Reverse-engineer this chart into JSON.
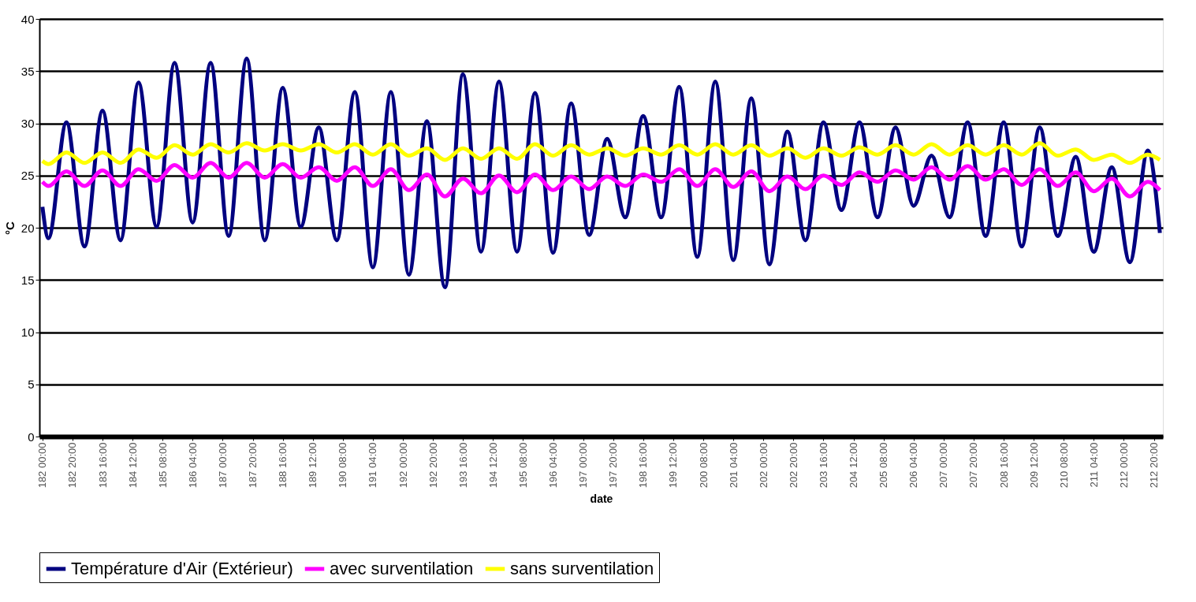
{
  "chart_data": {
    "type": "line",
    "xlabel": "date",
    "ylabel": "°C",
    "categories": [
      "182 00:00",
      null,
      null,
      null,
      null,
      "182 20:00",
      null,
      null,
      null,
      null,
      "183 16:00",
      null,
      null,
      null,
      null,
      "184 12:00",
      null,
      null,
      null,
      null,
      "185 08:00",
      null,
      null,
      null,
      null,
      "186 04:00",
      null,
      null,
      null,
      null,
      "187 00:00",
      null,
      null,
      null,
      null,
      "187 20:00",
      null,
      null,
      null,
      null,
      "188 16:00",
      null,
      null,
      null,
      null,
      "189 12:00",
      null,
      null,
      null,
      null,
      "190 08:00",
      null,
      null,
      null,
      null,
      "191 04:00",
      null,
      null,
      null,
      null,
      "192 00:00",
      null,
      null,
      null,
      null,
      "192 20:00",
      null,
      null,
      null,
      null,
      "193 16:00",
      null,
      null,
      null,
      null,
      "194 12:00",
      null,
      null,
      null,
      null,
      "195 08:00",
      null,
      null,
      null,
      null,
      "196 04:00",
      null,
      null,
      null,
      null,
      "197 00:00",
      null,
      null,
      null,
      null,
      "197 20:00",
      null,
      null,
      null,
      null,
      "198 16:00",
      null,
      null,
      null,
      null,
      "199 12:00",
      null,
      null,
      null,
      null,
      "200 08:00",
      null,
      null,
      null,
      null,
      "201 04:00",
      null,
      null,
      null,
      null,
      "202 00:00",
      null,
      null,
      null,
      null,
      "202 20:00",
      null,
      null,
      null,
      null,
      "203 16:00",
      null,
      null,
      null,
      null,
      "204 12:00",
      null,
      null,
      null,
      null,
      "205 08:00",
      null,
      null,
      null,
      null,
      "206 04:00",
      null,
      null,
      null,
      null,
      "207 00:00",
      null,
      null,
      null,
      null,
      "207 20:00",
      null,
      null,
      null,
      null,
      "208 16:00",
      null,
      null,
      null,
      null,
      "209 12:00",
      null,
      null,
      null,
      null,
      "210 08:00",
      null,
      null,
      null,
      null,
      "211 04:00",
      null,
      null,
      null,
      null,
      "212 00:00",
      null,
      null,
      null,
      null,
      "212 20:00",
      null
    ],
    "series": [
      {
        "name": "Température d'Air (Extérieur)",
        "color": "#000080",
        "values": [
          22.0,
          19.0,
          null,
          null,
          30.1,
          null,
          null,
          18.2,
          null,
          null,
          31.2,
          null,
          null,
          18.8,
          null,
          null,
          33.9,
          null,
          null,
          20.1,
          null,
          null,
          35.8,
          null,
          null,
          20.5,
          null,
          null,
          35.8,
          null,
          null,
          19.2,
          null,
          null,
          36.2,
          null,
          null,
          18.8,
          null,
          null,
          33.4,
          null,
          null,
          20.1,
          null,
          null,
          29.6,
          null,
          null,
          18.8,
          null,
          null,
          33.0,
          null,
          null,
          16.2,
          null,
          null,
          33.0,
          null,
          null,
          15.5,
          null,
          null,
          30.2,
          null,
          null,
          14.3,
          null,
          null,
          34.7,
          null,
          null,
          17.7,
          null,
          null,
          34.0,
          null,
          null,
          17.7,
          null,
          null,
          32.9,
          null,
          null,
          17.6,
          null,
          null,
          31.9,
          null,
          null,
          19.3,
          null,
          null,
          28.5,
          null,
          null,
          21.0,
          null,
          null,
          30.7,
          null,
          null,
          21.0,
          null,
          null,
          33.5,
          null,
          null,
          17.2,
          null,
          null,
          34.0,
          null,
          null,
          16.9,
          null,
          null,
          32.4,
          null,
          null,
          16.5,
          null,
          null,
          29.2,
          null,
          null,
          18.8,
          null,
          null,
          30.1,
          null,
          null,
          21.7,
          null,
          null,
          30.1,
          null,
          null,
          21.0,
          null,
          null,
          29.6,
          null,
          null,
          22.1,
          null,
          null,
          26.9,
          null,
          null,
          21.0,
          null,
          null,
          30.1,
          null,
          null,
          19.2,
          null,
          null,
          30.1,
          null,
          null,
          18.2,
          null,
          null,
          29.6,
          null,
          null,
          19.2,
          null,
          null,
          26.8,
          null,
          null,
          17.7,
          null,
          null,
          25.8,
          null,
          null,
          16.7,
          null,
          null,
          27.4,
          null,
          19.5
        ]
      },
      {
        "name": "avec surventilation",
        "color": "#ff00ff",
        "values": [
          24.4,
          24.0,
          null,
          null,
          25.4,
          null,
          null,
          24.0,
          null,
          null,
          25.5,
          null,
          null,
          24.0,
          null,
          null,
          25.6,
          null,
          null,
          24.5,
          null,
          null,
          26.0,
          null,
          null,
          24.8,
          null,
          null,
          26.2,
          null,
          null,
          24.8,
          null,
          null,
          26.2,
          null,
          null,
          24.8,
          null,
          null,
          26.1,
          null,
          null,
          24.8,
          null,
          null,
          25.8,
          null,
          null,
          24.5,
          null,
          null,
          25.8,
          null,
          null,
          24.0,
          null,
          null,
          25.6,
          null,
          null,
          23.6,
          null,
          null,
          25.1,
          null,
          null,
          23.0,
          null,
          null,
          24.7,
          null,
          null,
          23.3,
          null,
          null,
          25.0,
          null,
          null,
          23.4,
          null,
          null,
          25.1,
          null,
          null,
          23.6,
          null,
          null,
          24.9,
          null,
          null,
          23.7,
          null,
          null,
          24.9,
          null,
          null,
          24.0,
          null,
          null,
          25.1,
          null,
          null,
          24.4,
          null,
          null,
          25.6,
          null,
          null,
          24.0,
          null,
          null,
          25.6,
          null,
          null,
          23.9,
          null,
          null,
          25.4,
          null,
          null,
          23.5,
          null,
          null,
          24.9,
          null,
          null,
          23.7,
          null,
          null,
          25.0,
          null,
          null,
          24.1,
          null,
          null,
          25.3,
          null,
          null,
          24.4,
          null,
          null,
          25.5,
          null,
          null,
          24.6,
          null,
          null,
          25.8,
          null,
          null,
          24.6,
          null,
          null,
          25.9,
          null,
          null,
          24.6,
          null,
          null,
          25.6,
          null,
          null,
          24.1,
          null,
          null,
          25.6,
          null,
          null,
          24.0,
          null,
          null,
          25.3,
          null,
          null,
          23.5,
          null,
          null,
          24.7,
          null,
          null,
          23.0,
          null,
          null,
          24.4,
          null,
          23.6
        ]
      },
      {
        "name": "sans surventilation",
        "color": "#ffff00",
        "values": [
          26.4,
          26.1,
          null,
          null,
          27.2,
          null,
          null,
          26.2,
          null,
          null,
          27.2,
          null,
          null,
          26.2,
          null,
          null,
          27.5,
          null,
          null,
          26.7,
          null,
          null,
          27.9,
          null,
          null,
          27.0,
          null,
          null,
          28.0,
          null,
          null,
          27.2,
          null,
          null,
          28.1,
          null,
          null,
          27.4,
          null,
          null,
          28.0,
          null,
          null,
          27.4,
          null,
          null,
          28.0,
          null,
          null,
          27.2,
          null,
          null,
          28.0,
          null,
          null,
          27.0,
          null,
          null,
          28.0,
          null,
          null,
          26.9,
          null,
          null,
          27.6,
          null,
          null,
          26.5,
          null,
          null,
          27.6,
          null,
          null,
          26.6,
          null,
          null,
          27.6,
          null,
          null,
          26.6,
          null,
          null,
          28.0,
          null,
          null,
          26.9,
          null,
          null,
          27.9,
          null,
          null,
          27.0,
          null,
          null,
          27.6,
          null,
          null,
          26.9,
          null,
          null,
          27.6,
          null,
          null,
          27.0,
          null,
          null,
          27.9,
          null,
          null,
          27.0,
          null,
          null,
          28.0,
          null,
          null,
          27.0,
          null,
          null,
          27.9,
          null,
          null,
          26.9,
          null,
          null,
          27.6,
          null,
          null,
          26.7,
          null,
          null,
          27.6,
          null,
          null,
          26.9,
          null,
          null,
          27.7,
          null,
          null,
          27.0,
          null,
          null,
          27.9,
          null,
          null,
          27.0,
          null,
          null,
          28.0,
          null,
          null,
          27.0,
          null,
          null,
          27.9,
          null,
          null,
          27.0,
          null,
          null,
          27.9,
          null,
          null,
          27.0,
          null,
          null,
          28.1,
          null,
          null,
          26.9,
          null,
          null,
          27.5,
          null,
          null,
          26.5,
          null,
          null,
          27.0,
          null,
          null,
          26.2,
          null,
          null,
          27.0,
          null,
          26.5
        ]
      }
    ],
    "ylim": [
      0,
      40
    ],
    "yticks": [
      0,
      5,
      10,
      15,
      20,
      25,
      30,
      35,
      40
    ],
    "grid": "y",
    "legend": "bottom",
    "marker": "none",
    "line_style": "solid"
  }
}
